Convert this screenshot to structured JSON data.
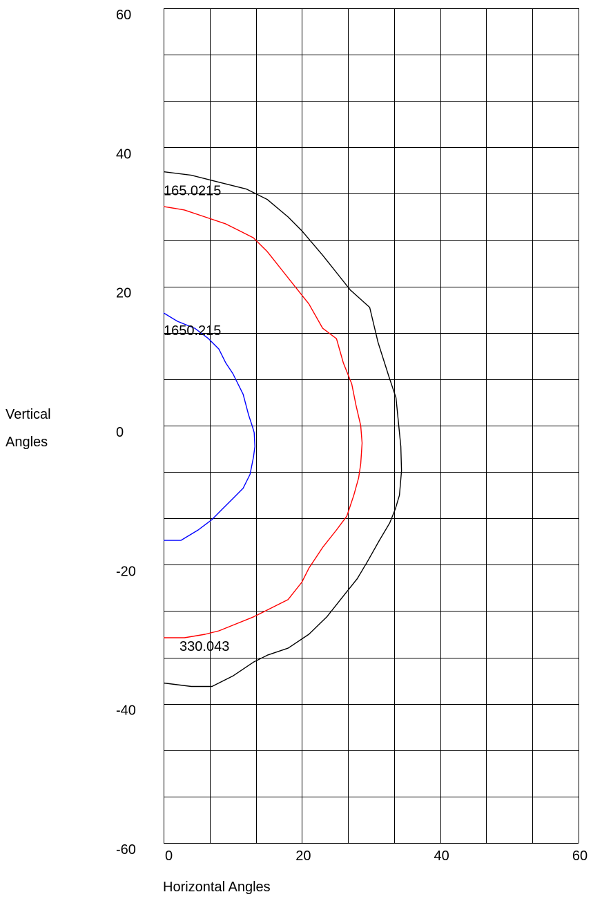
{
  "chart_data": {
    "type": "line",
    "xlabel": "Horizontal Angles",
    "ylabel": [
      "Vertical",
      "Angles"
    ],
    "xlim": [
      0,
      60
    ],
    "ylim": [
      -60,
      60
    ],
    "x_ticks": [
      "0",
      "20",
      "40",
      "60"
    ],
    "y_ticks": [
      "60",
      "40",
      "20",
      "0",
      "-20",
      "-40",
      "-60"
    ],
    "grid": true,
    "grid_x_values": [
      0,
      6.67,
      13.33,
      20,
      26.67,
      33.33,
      40,
      46.67,
      53.33,
      60
    ],
    "grid_y_values": [
      60,
      53.33,
      46.67,
      40,
      33.33,
      26.67,
      20,
      13.33,
      6.67,
      0,
      -6.67,
      -13.33,
      -20,
      -26.67,
      -33.33,
      -40,
      -46.67,
      -53.33,
      -60
    ],
    "series": [
      {
        "color": "#000000",
        "x": [
          0,
          4,
          8,
          12,
          15,
          18,
          20,
          23,
          25,
          27,
          29.8,
          31,
          32.6,
          33.6,
          34,
          34.3,
          34.4,
          34.1,
          33.5,
          32.7,
          31.2,
          29.5,
          28,
          26,
          23.6,
          21,
          18,
          15,
          13,
          10,
          7,
          4,
          0
        ],
        "y": [
          36.5,
          36,
          35,
          34,
          32.5,
          30,
          28,
          24.5,
          22,
          19.5,
          17,
          12,
          7,
          4,
          0,
          -3,
          -6.5,
          -10,
          -12,
          -14,
          -16.5,
          -19.5,
          -22,
          -24.5,
          -27.5,
          -30,
          -32,
          -33,
          -34,
          -36,
          -37.5,
          -37.5,
          -37
        ]
      },
      {
        "color": "#ff0000",
        "x": [
          0,
          3,
          6,
          9,
          11,
          13,
          15,
          17,
          19,
          21,
          23,
          25,
          26,
          27.2,
          27.8,
          28.5,
          28.7,
          28.5,
          28.2,
          27.5,
          26.5,
          25,
          23,
          21,
          20,
          18,
          15,
          13,
          10.5,
          8,
          6,
          3,
          0
        ],
        "y": [
          31.5,
          31,
          30,
          29,
          28,
          27,
          25,
          22.5,
          20,
          17.5,
          14,
          12.5,
          9,
          6,
          3,
          0,
          -2.5,
          -5.5,
          -7.5,
          -10,
          -13,
          -15,
          -17.5,
          -20.5,
          -22.5,
          -25,
          -26.5,
          -27.5,
          -28.5,
          -29.5,
          -30,
          -30.5,
          -30.5
        ]
      },
      {
        "color": "#0000ff",
        "x": [
          0,
          2,
          4.5,
          6.5,
          8,
          9,
          10,
          11.5,
          12.3,
          12.8,
          13.1,
          13.2,
          13,
          12.5,
          11.5,
          10,
          8.5,
          7,
          5,
          2.5,
          0
        ],
        "y": [
          16.2,
          15,
          14,
          12.5,
          11,
          9,
          7.5,
          4.5,
          1.5,
          0,
          -1,
          -3,
          -4.5,
          -7,
          -9,
          -10.5,
          -12,
          -13.5,
          -15,
          -16.5,
          -16.5
        ]
      }
    ],
    "annotations": [
      {
        "text": "165.0215",
        "x": 0,
        "y": 33.8
      },
      {
        "text": "1650.215",
        "x": 0,
        "y": 13.7
      },
      {
        "text": "330.043",
        "x": 2.3,
        "y": -31.7
      }
    ]
  }
}
